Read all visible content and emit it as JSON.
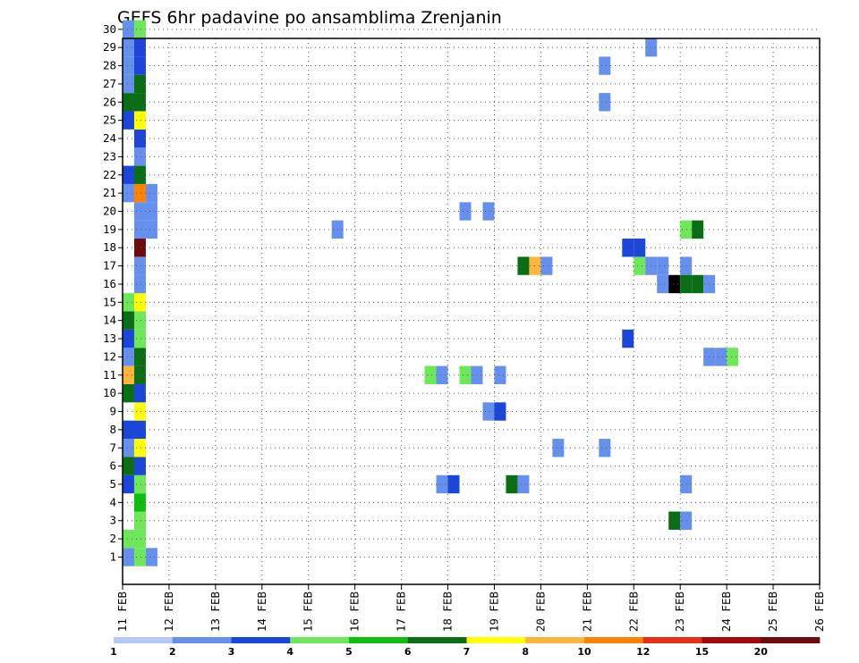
{
  "chart_data": {
    "type": "heatmap",
    "title": "GEFS 6hr padavine po ansamblima Zrenjanin",
    "x_tick_labels": [
      "11 FEB",
      "12 FEB",
      "13 FEB",
      "14 FEB",
      "15 FEB",
      "16 FEB",
      "17 FEB",
      "18 FEB",
      "19 FEB",
      "20 FEB",
      "21 FEB",
      "22 FEB",
      "23 FEB",
      "24 FEB",
      "25 FEB",
      "26 FEB"
    ],
    "y_tick_labels": [
      "1",
      "2",
      "3",
      "4",
      "5",
      "6",
      "7",
      "8",
      "9",
      "10",
      "11",
      "12",
      "13",
      "14",
      "15",
      "16",
      "17",
      "18",
      "19",
      "20",
      "21",
      "22",
      "23",
      "24",
      "25",
      "26",
      "27",
      "28",
      "29",
      "30"
    ],
    "x_step": "6hr",
    "grid": true,
    "legend": {
      "placement": "bottom",
      "labels": [
        "1",
        "2",
        "3",
        "4",
        "5",
        "6",
        "7",
        "8",
        "10",
        "12",
        "15",
        "20"
      ],
      "colors": [
        "#b3c8f5",
        "#6690ee",
        "#1a46dc",
        "#6ee85a",
        "#0dbe0d",
        "#0a6e14",
        "#ffff00",
        "#ffb43c",
        "#ff8200",
        "#e63214",
        "#a00a0a",
        "#6e0a0a"
      ]
    },
    "cells": [
      [
        0,
        1,
        1
      ],
      [
        1,
        1,
        3
      ],
      [
        0,
        2,
        3
      ],
      [
        1,
        2,
        3
      ],
      [
        2,
        1,
        1
      ],
      [
        1,
        3,
        3
      ],
      [
        1,
        4,
        4
      ],
      [
        0,
        5,
        2
      ],
      [
        1,
        5,
        3
      ],
      [
        0,
        6,
        5
      ],
      [
        1,
        6,
        2
      ],
      [
        0,
        7,
        1
      ],
      [
        1,
        7,
        6
      ],
      [
        0,
        8,
        2
      ],
      [
        1,
        8,
        2
      ],
      [
        1,
        9,
        6
      ],
      [
        0,
        10,
        5
      ],
      [
        1,
        10,
        2
      ],
      [
        0,
        11,
        7
      ],
      [
        1,
        11,
        5
      ],
      [
        0,
        12,
        1
      ],
      [
        1,
        12,
        5
      ],
      [
        0,
        13,
        2
      ],
      [
        1,
        13,
        3
      ],
      [
        0,
        14,
        5
      ],
      [
        1,
        14,
        3
      ],
      [
        0,
        15,
        3
      ],
      [
        1,
        15,
        6
      ],
      [
        1,
        16,
        1
      ],
      [
        1,
        17,
        1
      ],
      [
        1,
        18,
        11
      ],
      [
        1,
        19,
        1
      ],
      [
        2,
        19,
        1
      ],
      [
        1,
        20,
        1
      ],
      [
        2,
        20,
        1
      ],
      [
        0,
        21,
        1
      ],
      [
        1,
        21,
        8
      ],
      [
        2,
        21,
        1
      ],
      [
        0,
        22,
        2
      ],
      [
        1,
        22,
        5
      ],
      [
        1,
        23,
        1
      ],
      [
        1,
        24,
        2
      ],
      [
        0,
        25,
        2
      ],
      [
        1,
        25,
        6
      ],
      [
        0,
        26,
        5
      ],
      [
        1,
        26,
        5
      ],
      [
        0,
        27,
        1
      ],
      [
        1,
        27,
        5
      ],
      [
        0,
        28,
        1
      ],
      [
        1,
        28,
        2
      ],
      [
        0,
        29,
        1
      ],
      [
        1,
        29,
        2
      ],
      [
        0,
        30,
        1
      ],
      [
        1,
        30,
        3
      ],
      [
        18,
        19,
        1
      ],
      [
        29,
        20,
        1
      ],
      [
        31,
        20,
        1
      ],
      [
        26,
        11,
        3
      ],
      [
        27,
        11,
        1
      ],
      [
        29,
        11,
        3
      ],
      [
        30,
        11,
        1
      ],
      [
        32,
        11,
        1
      ],
      [
        31,
        9,
        1
      ],
      [
        32,
        9,
        2
      ],
      [
        27,
        5,
        1
      ],
      [
        28,
        5,
        2
      ],
      [
        33,
        5,
        5
      ],
      [
        34,
        5,
        1
      ],
      [
        37,
        7,
        1
      ],
      [
        41,
        7,
        1
      ],
      [
        41,
        26,
        1
      ],
      [
        41,
        28,
        1
      ],
      [
        45,
        29,
        1
      ],
      [
        34,
        17,
        5
      ],
      [
        35,
        17,
        7
      ],
      [
        36,
        17,
        1
      ],
      [
        44,
        17,
        3
      ],
      [
        45,
        17,
        1
      ],
      [
        46,
        17,
        1
      ],
      [
        48,
        17,
        1
      ],
      [
        46,
        16,
        1
      ],
      [
        47,
        16,
        13
      ],
      [
        48,
        16,
        5
      ],
      [
        49,
        16,
        5
      ],
      [
        50,
        16,
        1
      ],
      [
        43,
        18,
        2
      ],
      [
        44,
        18,
        2
      ],
      [
        48,
        19,
        3
      ],
      [
        49,
        19,
        5
      ],
      [
        43,
        13,
        2
      ],
      [
        50,
        12,
        1
      ],
      [
        51,
        12,
        1
      ],
      [
        52,
        12,
        3
      ],
      [
        47,
        3,
        5
      ],
      [
        48,
        3,
        1
      ],
      [
        48,
        5,
        1
      ]
    ]
  }
}
